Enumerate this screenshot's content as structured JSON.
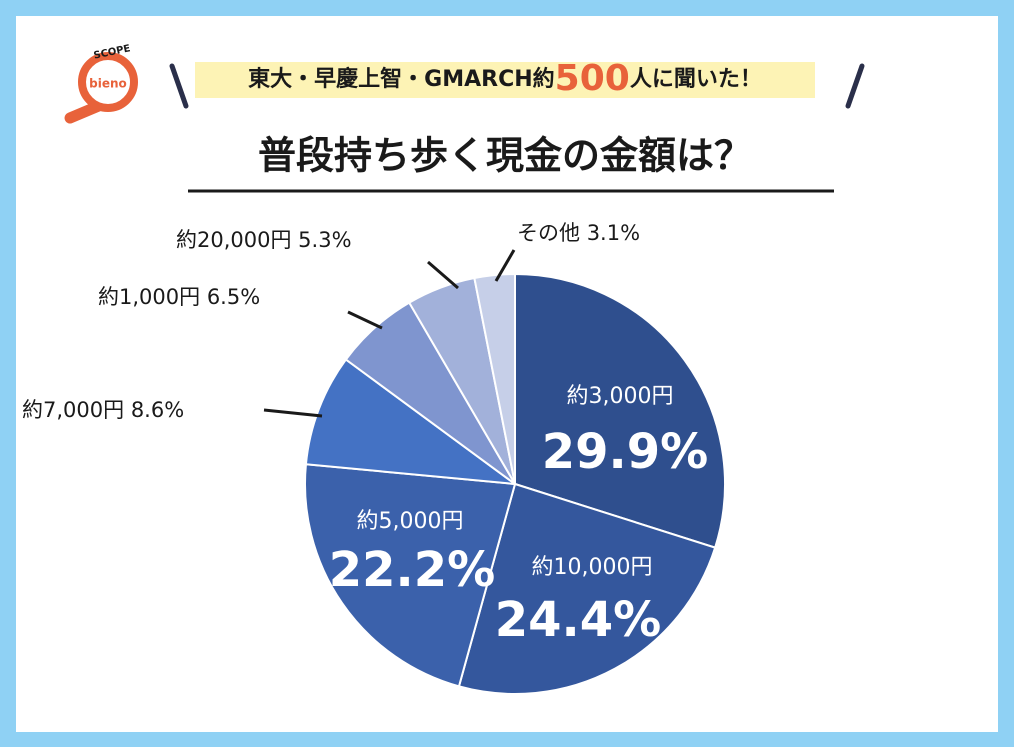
{
  "logo": {
    "tagline": "SCOPE",
    "name": "bieno"
  },
  "chart_data": {
    "type": "pie",
    "subtitle": [
      "東大・早慶上智・GMARCH約",
      "500",
      "人に聞いた！"
    ],
    "title": "普段持ち歩く現金の金額は？",
    "categories": [
      "約3,000円",
      "約10,000円",
      "約5,000円",
      "約7,000円",
      "約1,000円",
      "約20,000円",
      "その他"
    ],
    "values": [
      29.9,
      24.4,
      22.2,
      8.6,
      6.5,
      5.3,
      3.1
    ],
    "value_labels": [
      "29.9%",
      "24.4%",
      "22.2%",
      "8.6%",
      "6.5%",
      "5.3%",
      "3.1%"
    ],
    "colors": [
      "#2f4f8e",
      "#34579d",
      "#3b61ab",
      "#4472c4",
      "#7f95cf",
      "#a2b1da",
      "#c6cfe8"
    ]
  }
}
